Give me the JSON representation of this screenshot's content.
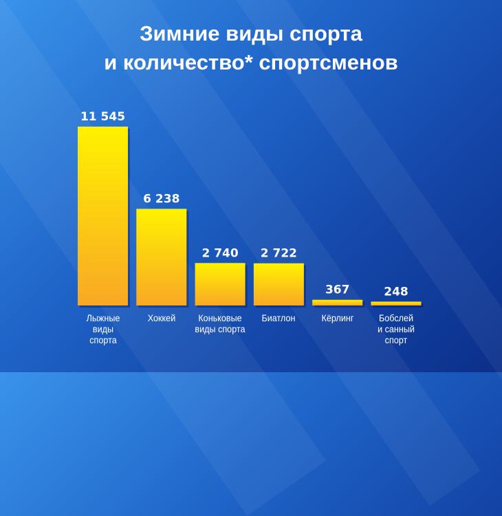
{
  "chart_data": {
    "type": "bar",
    "title_lines": [
      "Зимние виды спорта",
      "и количество* спортсменов"
    ],
    "categories": [
      [
        "Лыжные",
        "виды",
        "спорта"
      ],
      [
        "Хоккей"
      ],
      [
        "Коньковые",
        "виды спорта"
      ],
      [
        "Биатлон"
      ],
      [
        "Кёрлинг"
      ],
      [
        "Бобслей",
        "и санный",
        "спорт"
      ]
    ],
    "values": [
      11545,
      6238,
      2740,
      2722,
      367,
      248
    ],
    "value_labels": [
      "11 545",
      "6 238",
      "2 740",
      "2 722",
      "367",
      "248"
    ],
    "xlabel": "",
    "ylabel": "",
    "ylim": [
      0,
      11545
    ],
    "grid": false,
    "colors": {
      "bar_top": "#fff200",
      "bar_bottom": "#f9a825",
      "background": "#1a55b8",
      "text": "#ffffff"
    }
  }
}
